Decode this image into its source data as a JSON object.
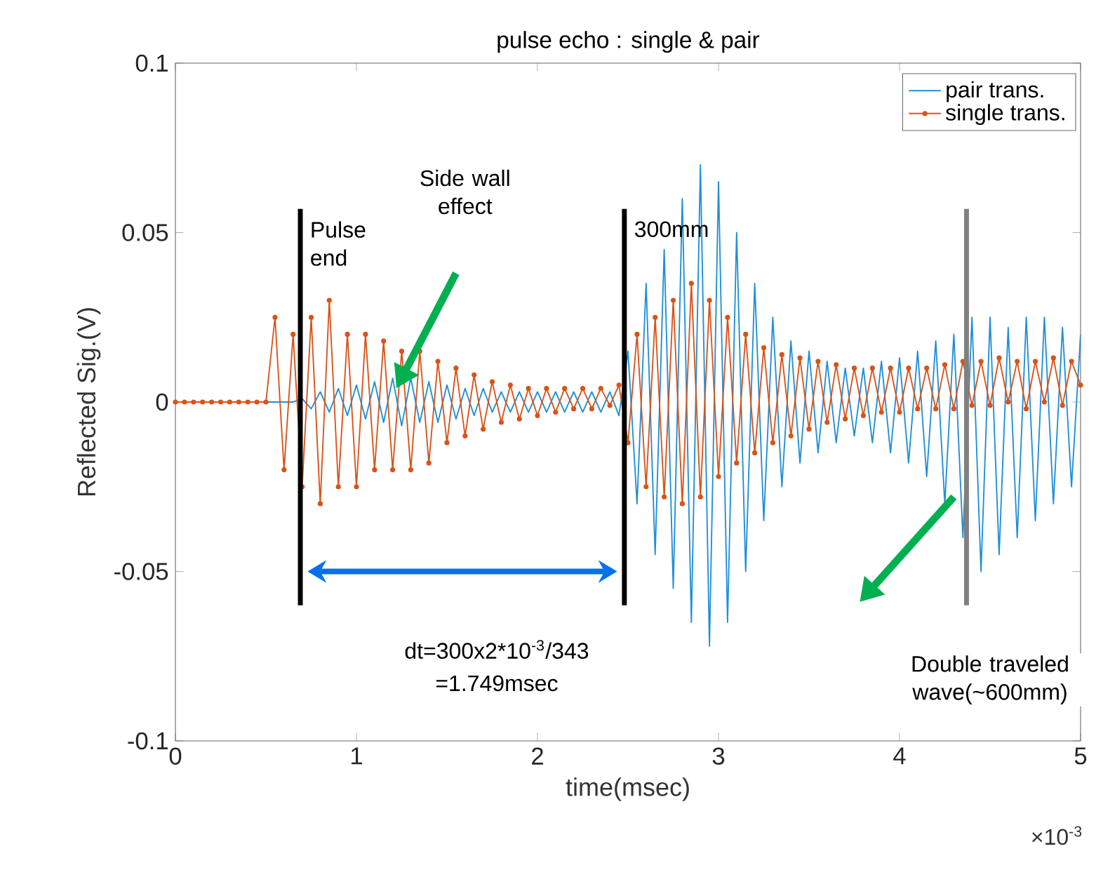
{
  "chart_data": {
    "type": "line",
    "title": "pulse echo : single & pair",
    "xlabel": "time(msec)",
    "ylabel": "Reflected Sig.(V)",
    "x": [
      0,
      0.05,
      0.1,
      0.15,
      0.2,
      0.25,
      0.3,
      0.35,
      0.4,
      0.45,
      0.5,
      0.55,
      0.6,
      0.65,
      0.7,
      0.75,
      0.8,
      0.85,
      0.9,
      0.95,
      1,
      1.05,
      1.1,
      1.15,
      1.2,
      1.25,
      1.3,
      1.35,
      1.4,
      1.45,
      1.5,
      1.55,
      1.6,
      1.65,
      1.7,
      1.75,
      1.8,
      1.85,
      1.9,
      1.95,
      2,
      2.05,
      2.1,
      2.15,
      2.2,
      2.25,
      2.3,
      2.35,
      2.4,
      2.45,
      2.5,
      2.55,
      2.6,
      2.65,
      2.7,
      2.75,
      2.8,
      2.85,
      2.9,
      2.95,
      3,
      3.05,
      3.1,
      3.15,
      3.2,
      3.25,
      3.3,
      3.35,
      3.4,
      3.45,
      3.5,
      3.55,
      3.6,
      3.65,
      3.7,
      3.75,
      3.8,
      3.85,
      3.9,
      3.95,
      4,
      4.05,
      4.1,
      4.15,
      4.2,
      4.25,
      4.3,
      4.35,
      4.4,
      4.45,
      4.5,
      4.55,
      4.6,
      4.65,
      4.7,
      4.75,
      4.8,
      4.85,
      4.9,
      4.95,
      5
    ],
    "series": [
      {
        "name": "pair trans.",
        "color": "#1f8fd8",
        "marker": "none",
        "values": [
          null,
          null,
          null,
          null,
          null,
          null,
          null,
          null,
          null,
          0,
          0,
          0,
          0,
          0,
          0.001,
          -0.002,
          0.003,
          -0.003,
          0.004,
          -0.004,
          0.005,
          -0.005,
          0.006,
          -0.006,
          0.007,
          -0.007,
          0.007,
          -0.006,
          0.006,
          -0.006,
          0.005,
          -0.005,
          0.004,
          -0.004,
          0.004,
          -0.003,
          0.003,
          -0.003,
          0.003,
          -0.003,
          0.003,
          -0.003,
          0.003,
          -0.003,
          0.003,
          -0.003,
          0.003,
          -0.003,
          0.003,
          -0.004,
          0.015,
          -0.03,
          0.035,
          -0.045,
          0.045,
          -0.055,
          0.06,
          -0.065,
          0.07,
          -0.072,
          0.065,
          -0.065,
          0.05,
          -0.05,
          0.035,
          -0.035,
          0.025,
          -0.025,
          0.018,
          -0.018,
          0.015,
          -0.015,
          0.012,
          -0.012,
          0.01,
          -0.01,
          0.01,
          -0.012,
          0.012,
          -0.015,
          0.013,
          -0.018,
          0.015,
          -0.022,
          0.018,
          -0.03,
          0.02,
          -0.04,
          0.025,
          -0.05,
          0.025,
          -0.045,
          0.022,
          -0.04,
          0.025,
          -0.035,
          0.025,
          -0.03,
          0.022,
          -0.025,
          0.02
        ]
      },
      {
        "name": "single trans.",
        "color": "#d95319",
        "marker": "circle",
        "values": [
          0,
          0,
          0,
          0,
          0,
          0,
          0,
          0,
          0,
          0,
          0,
          0.025,
          -0.02,
          0.02,
          -0.025,
          0.025,
          -0.03,
          0.03,
          -0.025,
          0.02,
          -0.025,
          0.02,
          -0.02,
          0.018,
          -0.02,
          0.015,
          -0.02,
          0.015,
          -0.018,
          0.012,
          -0.012,
          0.01,
          -0.01,
          0.008,
          -0.008,
          0.006,
          -0.006,
          0.005,
          -0.005,
          0.004,
          -0.004,
          0.004,
          -0.003,
          0.004,
          -0.002,
          0.004,
          -0.002,
          0.004,
          -0.001,
          0.005,
          -0.012,
          0.02,
          -0.025,
          0.025,
          -0.028,
          0.03,
          -0.03,
          0.035,
          -0.028,
          0.03,
          -0.022,
          0.025,
          -0.018,
          0.02,
          -0.015,
          0.016,
          -0.012,
          0.014,
          -0.01,
          0.013,
          -0.008,
          0.012,
          -0.006,
          0.011,
          -0.005,
          0.01,
          -0.004,
          0.01,
          -0.003,
          0.01,
          -0.003,
          0.01,
          -0.002,
          0.01,
          -0.002,
          0.011,
          -0.002,
          0.012,
          -0.001,
          0.012,
          -0.001,
          0.013,
          0,
          0.012,
          -0.002,
          0.012,
          0,
          0.013,
          -0.001,
          0.012,
          0.005
        ]
      }
    ],
    "xlim": [
      0,
      5
    ],
    "xticks": [
      0,
      1,
      2,
      3,
      4,
      5
    ],
    "ylim": [
      -0.1,
      0.1
    ],
    "yticks": [
      -0.1,
      -0.05,
      0,
      0.05,
      0.1
    ],
    "ref_lines": [
      {
        "axis": "x",
        "value": 0.69,
        "label": "Pulse end",
        "color": "#000000"
      },
      {
        "axis": "x",
        "value": 2.48,
        "label": "300mm",
        "color": "#000000"
      },
      {
        "axis": "x",
        "value": 4.37,
        "color": "#808080"
      }
    ],
    "annotations": [
      "Side wall effect",
      "dt=300x2*10$^{-3}$/343",
      "=1.749msec",
      "Double traveled wave(~600mm)",
      "×10$^{-3}$"
    ],
    "legend": "top right",
    "grid": false
  }
}
